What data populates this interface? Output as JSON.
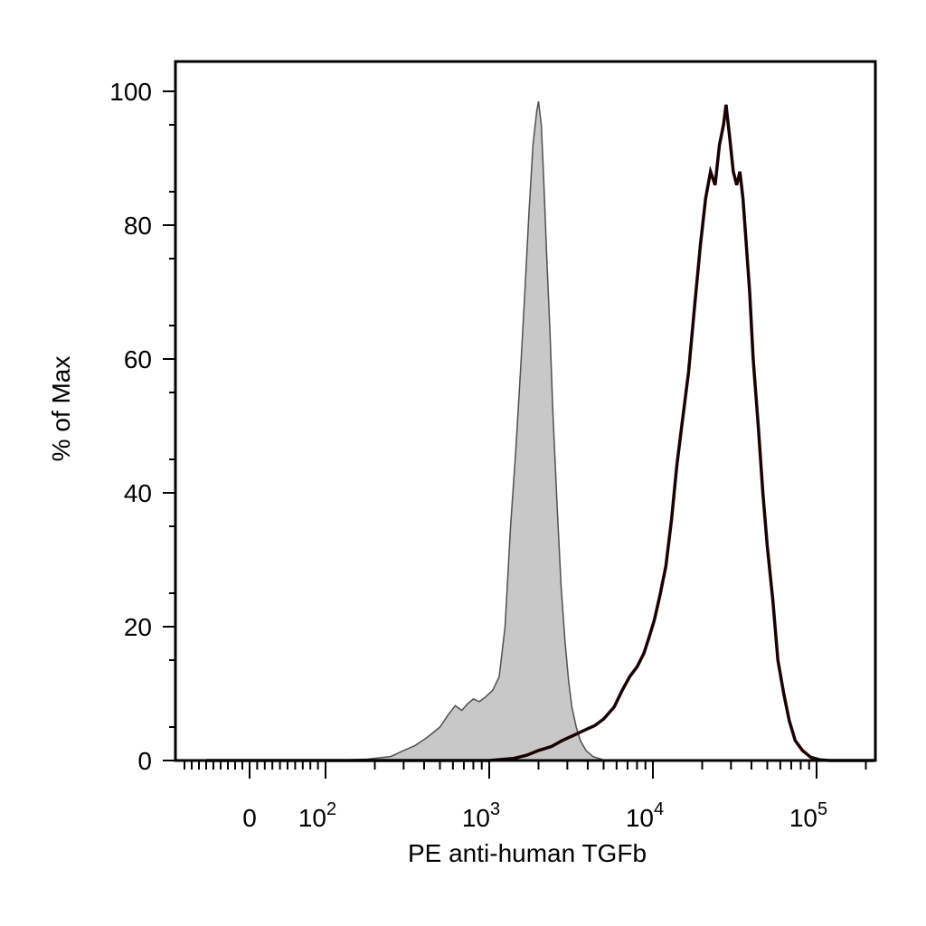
{
  "chart_data": {
    "type": "area",
    "title": "",
    "xlabel": "PE anti-human TGFb",
    "ylabel": "% of Max",
    "x_scale": "biexponential",
    "y_range": [
      0,
      100
    ],
    "y_ticks": [
      0,
      20,
      40,
      60,
      80,
      100
    ],
    "y_tick_labels": [
      "0",
      "20",
      "40",
      "60",
      "80",
      "100"
    ],
    "x_ticks": [
      {
        "value": 0,
        "label": "0",
        "exponent": ""
      },
      {
        "value": 100,
        "label": "10",
        "exponent": "2"
      },
      {
        "value": 1000,
        "label": "10",
        "exponent": "3"
      },
      {
        "value": 10000,
        "label": "10",
        "exponent": "4"
      },
      {
        "value": 100000,
        "label": "10",
        "exponent": "5"
      }
    ],
    "grid": false,
    "legend": "none",
    "series": [
      {
        "style": "filled-gray",
        "color": "#c8c8c8",
        "stroke": "#505050",
        "points": [
          [
            -60,
            0
          ],
          [
            0,
            0
          ],
          [
            100,
            0
          ],
          [
            180,
            0.2
          ],
          [
            250,
            0.6
          ],
          [
            300,
            1.5
          ],
          [
            350,
            2.2
          ],
          [
            420,
            3.5
          ],
          [
            500,
            5.0
          ],
          [
            560,
            6.8
          ],
          [
            620,
            8.2
          ],
          [
            680,
            7.5
          ],
          [
            740,
            8.5
          ],
          [
            800,
            9.2
          ],
          [
            870,
            8.8
          ],
          [
            950,
            9.5
          ],
          [
            1050,
            10.5
          ],
          [
            1150,
            12.5
          ],
          [
            1250,
            20
          ],
          [
            1350,
            35
          ],
          [
            1450,
            46
          ],
          [
            1550,
            58
          ],
          [
            1650,
            70
          ],
          [
            1750,
            82
          ],
          [
            1850,
            92
          ],
          [
            1950,
            97
          ],
          [
            2000,
            98.5
          ],
          [
            2080,
            95
          ],
          [
            2150,
            87
          ],
          [
            2250,
            75
          ],
          [
            2350,
            64
          ],
          [
            2450,
            52
          ],
          [
            2600,
            38
          ],
          [
            2750,
            26
          ],
          [
            2900,
            18
          ],
          [
            3050,
            12
          ],
          [
            3200,
            8
          ],
          [
            3400,
            5
          ],
          [
            3600,
            3
          ],
          [
            3900,
            1.5
          ],
          [
            4300,
            0.6
          ],
          [
            5000,
            0.1
          ],
          [
            6000,
            0
          ],
          [
            300000,
            0
          ]
        ]
      },
      {
        "style": "line",
        "color": "#1a0000",
        "points": [
          [
            -60,
            0
          ],
          [
            0,
            0
          ],
          [
            100,
            0
          ],
          [
            1000,
            0
          ],
          [
            1400,
            0.3
          ],
          [
            1700,
            0.8
          ],
          [
            2000,
            1.5
          ],
          [
            2400,
            2.1
          ],
          [
            2800,
            3.0
          ],
          [
            3300,
            3.8
          ],
          [
            3800,
            4.5
          ],
          [
            4400,
            5.2
          ],
          [
            5000,
            6.2
          ],
          [
            5800,
            8.0
          ],
          [
            6500,
            10.5
          ],
          [
            7200,
            12.5
          ],
          [
            8000,
            14.0
          ],
          [
            8800,
            16.0
          ],
          [
            9500,
            18.5
          ],
          [
            10200,
            21.0
          ],
          [
            11000,
            24.5
          ],
          [
            12000,
            29.0
          ],
          [
            13000,
            36.0
          ],
          [
            14000,
            44.0
          ],
          [
            15000,
            50.0
          ],
          [
            16500,
            58.0
          ],
          [
            18000,
            68.0
          ],
          [
            19500,
            77.0
          ],
          [
            21000,
            84.0
          ],
          [
            22500,
            88.0
          ],
          [
            24000,
            86.0
          ],
          [
            25500,
            92.0
          ],
          [
            27000,
            95.0
          ],
          [
            28000,
            98.0
          ],
          [
            29500,
            93.0
          ],
          [
            31000,
            88.0
          ],
          [
            32500,
            86.0
          ],
          [
            34000,
            88.0
          ],
          [
            35500,
            84.0
          ],
          [
            37000,
            78.0
          ],
          [
            39000,
            70.0
          ],
          [
            41000,
            60.0
          ],
          [
            44000,
            50.0
          ],
          [
            47000,
            40.0
          ],
          [
            50000,
            32.0
          ],
          [
            54000,
            24.0
          ],
          [
            58000,
            15.0
          ],
          [
            63000,
            10.0
          ],
          [
            68000,
            6.0
          ],
          [
            74000,
            3.0
          ],
          [
            82000,
            1.5
          ],
          [
            92000,
            0.5
          ],
          [
            105000,
            0.1
          ],
          [
            120000,
            0
          ],
          [
            300000,
            0
          ]
        ]
      }
    ]
  }
}
